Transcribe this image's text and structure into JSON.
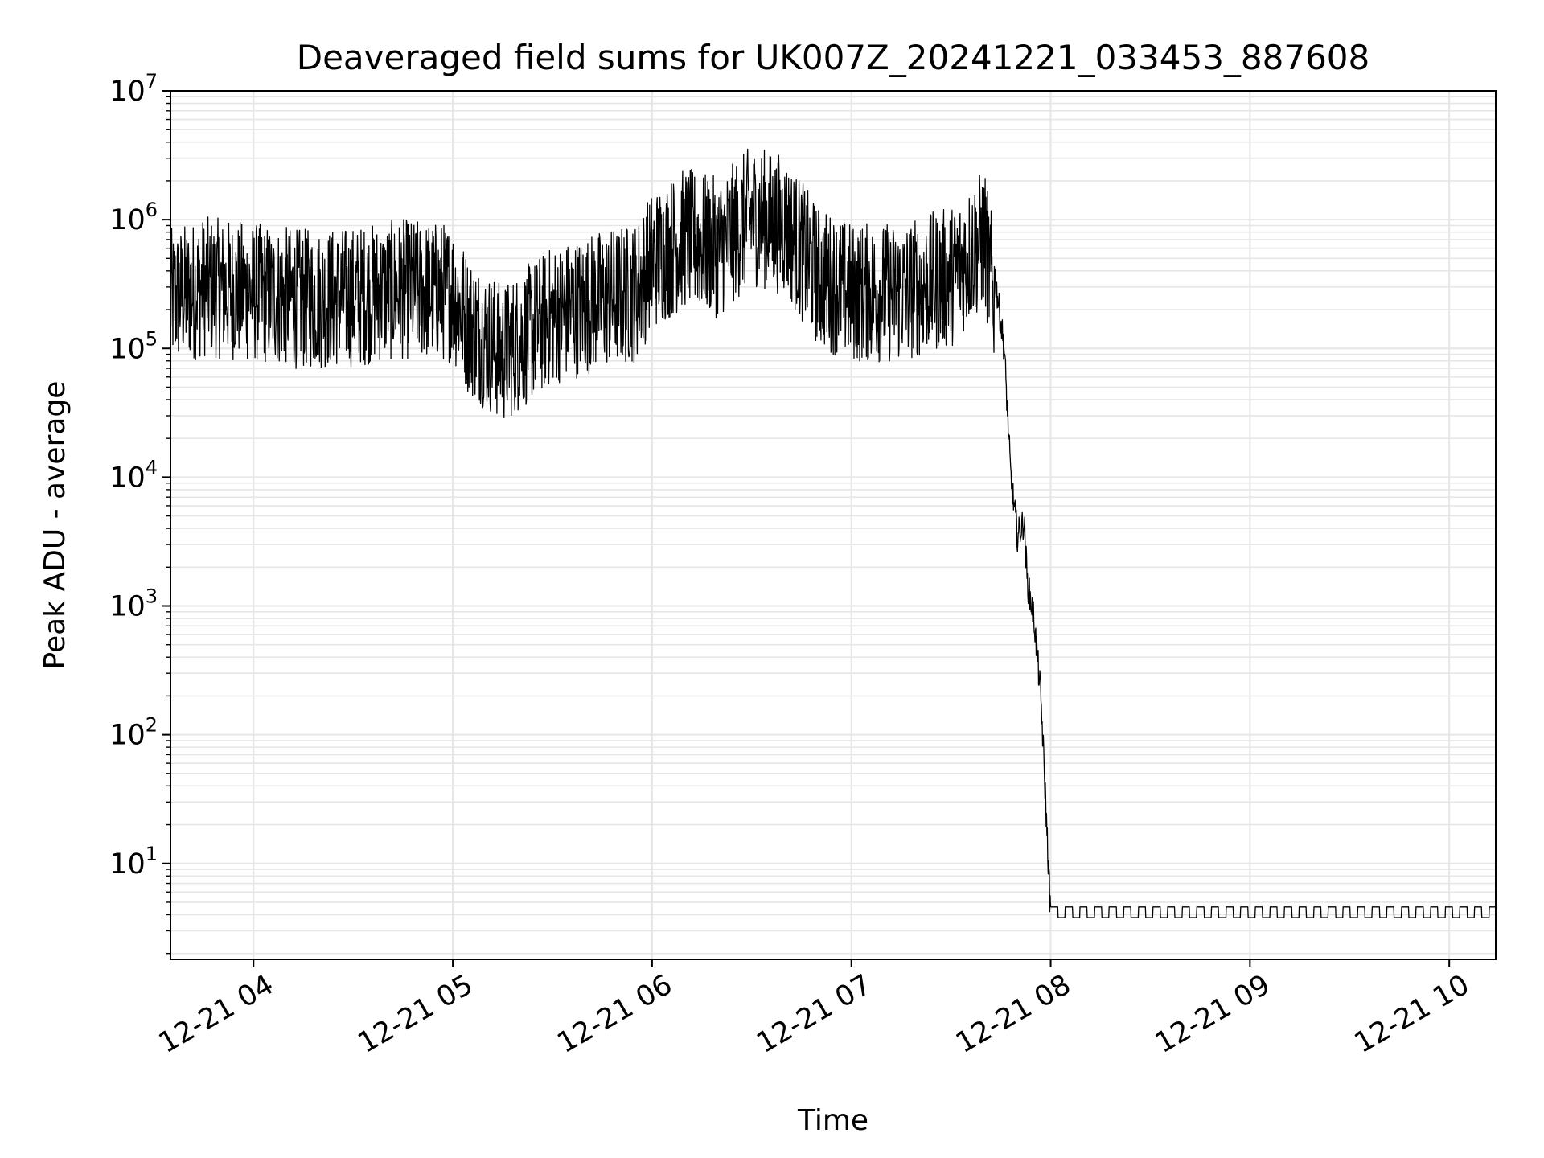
{
  "chart_data": {
    "type": "line",
    "title": "Deaveraged field sums for UK007Z_20241221_033453_887608",
    "xlabel": "Time",
    "ylabel": "Peak ADU - average",
    "yscale": "log",
    "grid": true,
    "ylim": [
      1.8,
      10000000
    ],
    "xlim": [
      "2024-12-21 03:35",
      "2024-12-21 10:14"
    ],
    "x_ticks": [
      "12-21 04",
      "12-21 05",
      "12-21 06",
      "12-21 07",
      "12-21 08",
      "12-21 09",
      "12-21 10"
    ],
    "y_ticks": [
      {
        "base": "10",
        "exp": "1",
        "value": 10
      },
      {
        "base": "10",
        "exp": "2",
        "value": 100
      },
      {
        "base": "10",
        "exp": "3",
        "value": 1000
      },
      {
        "base": "10",
        "exp": "4",
        "value": 10000
      },
      {
        "base": "10",
        "exp": "5",
        "value": 100000
      },
      {
        "base": "10",
        "exp": "6",
        "value": 1000000
      },
      {
        "base": "10",
        "exp": "7",
        "value": 10000000
      }
    ],
    "line_color": "#000000",
    "grid_color": "#e6e6e6",
    "series": [
      {
        "x": [
          "2024-12-21 03:35",
          "2024-12-21 03:45",
          "2024-12-21 04:00",
          "2024-12-21 04:15",
          "2024-12-21 04:30",
          "2024-12-21 04:45",
          "2024-12-21 05:00",
          "2024-12-21 05:05",
          "2024-12-21 05:15",
          "2024-12-21 05:30",
          "2024-12-21 05:45",
          "2024-12-21 05:55",
          "2024-12-21 06:00",
          "2024-12-21 06:10",
          "2024-12-21 06:20",
          "2024-12-21 06:30",
          "2024-12-21 06:40",
          "2024-12-21 06:50",
          "2024-12-21 07:00",
          "2024-12-21 07:15",
          "2024-12-21 07:30",
          "2024-12-21 07:40",
          "2024-12-21 07:43",
          "2024-12-21 07:46",
          "2024-12-21 07:48",
          "2024-12-21 07:50",
          "2024-12-21 07:52",
          "2024-12-21 07:53",
          "2024-12-21 07:55",
          "2024-12-21 07:57",
          "2024-12-21 07:58",
          "2024-12-21 08:00",
          "2024-12-21 08:30",
          "2024-12-21 09:00",
          "2024-12-21 09:30",
          "2024-12-21 10:00",
          "2024-12-21 10:14"
        ],
        "y": [
          400000,
          500000,
          450000,
          400000,
          420000,
          480000,
          450000,
          250000,
          150000,
          300000,
          400000,
          450000,
          800000,
          1200000,
          1000000,
          1800000,
          1500000,
          600000,
          450000,
          450000,
          600000,
          1200000,
          400000,
          100000,
          10000,
          3500,
          4500,
          1500,
          800,
          200,
          60,
          3.8,
          3.8,
          3.8,
          3.8,
          3.8,
          3.8
        ]
      }
    ]
  }
}
